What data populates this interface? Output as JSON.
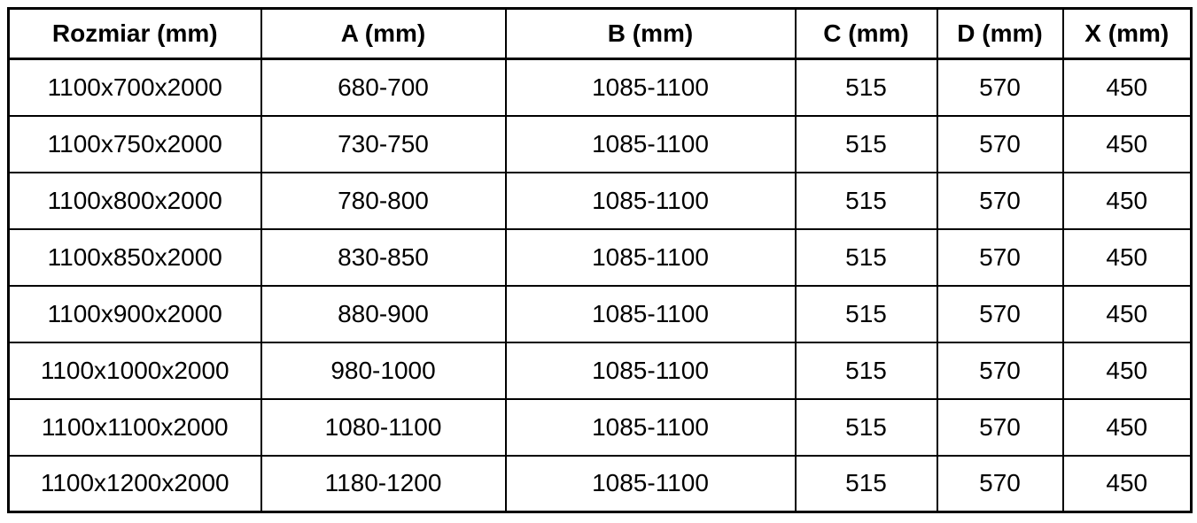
{
  "colors": {
    "background": "#ffffff",
    "border": "#000000",
    "text": "#000000"
  },
  "table": {
    "name": "shower-enclosure-size-spec-table",
    "columns": [
      "Rozmiar (mm)",
      "A (mm)",
      "B (mm)",
      "C (mm)",
      "D (mm)",
      "X (mm)"
    ],
    "rows": [
      [
        "1100x700x2000",
        "680-700",
        "1085-1100",
        "515",
        "570",
        "450"
      ],
      [
        "1100x750x2000",
        "730-750",
        "1085-1100",
        "515",
        "570",
        "450"
      ],
      [
        "1100x800x2000",
        "780-800",
        "1085-1100",
        "515",
        "570",
        "450"
      ],
      [
        "1100x850x2000",
        "830-850",
        "1085-1100",
        "515",
        "570",
        "450"
      ],
      [
        "1100x900x2000",
        "880-900",
        "1085-1100",
        "515",
        "570",
        "450"
      ],
      [
        "1100x1000x2000",
        "980-1000",
        "1085-1100",
        "515",
        "570",
        "450"
      ],
      [
        "1100x1100x2000",
        "1080-1100",
        "1085-1100",
        "515",
        "570",
        "450"
      ],
      [
        "1100x1200x2000",
        "1180-1200",
        "1085-1100",
        "515",
        "570",
        "450"
      ]
    ]
  }
}
